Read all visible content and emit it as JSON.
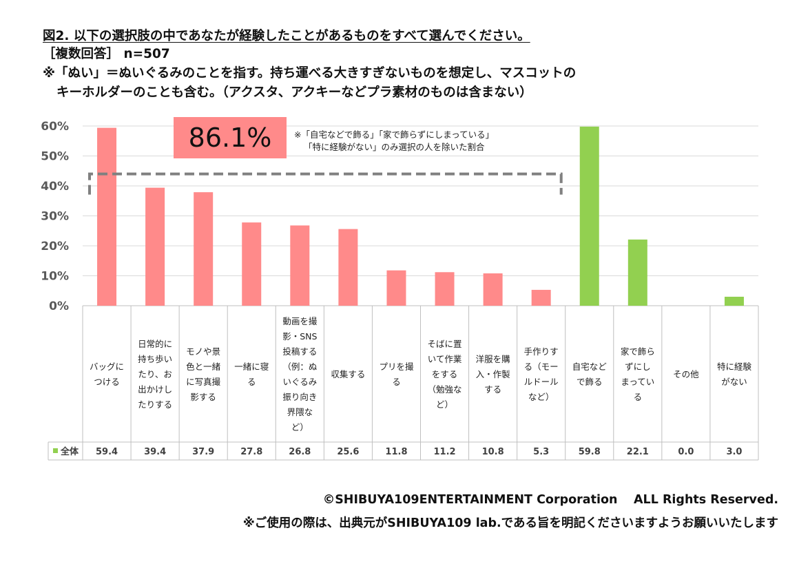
{
  "header": {
    "title": "図2. 以下の選択肢の中であなたが経験したことがあるものをすべて選んでください。",
    "sample": "［複数回答］ n=507",
    "note_line1": "※「ぬい」＝ぬいぐるみのことを指す。持ち運べる大きすぎないものを想定し、マスコットの",
    "note_line2": "キーホルダーのことも含む。（アクスタ、アクキーなどプラ素材のものは含まない）"
  },
  "chart_data": {
    "type": "bar",
    "ylim": [
      0,
      60
    ],
    "yticks": [
      "0%",
      "10%",
      "20%",
      "30%",
      "40%",
      "50%",
      "60%"
    ],
    "grid": true,
    "categories": [
      [
        "バッグに",
        "つける"
      ],
      [
        "日常的に",
        "持ち歩い",
        "たり、お",
        "出かけし",
        "たりする"
      ],
      [
        "モノや景",
        "色と一緒",
        "に写真撮",
        "影する"
      ],
      [
        "一緒に寝",
        "る"
      ],
      [
        "動画を撮",
        "影・SNS",
        "投稿する",
        "（例：ぬ",
        "いぐるみ",
        "振り向き",
        "界隈な",
        "ど）"
      ],
      [
        "収集する"
      ],
      [
        "プリを撮",
        "る"
      ],
      [
        "そばに置",
        "いて作業",
        "をする",
        "（勉強な",
        "ど）"
      ],
      [
        "洋服を購",
        "入・作製",
        "する"
      ],
      [
        "手作りす",
        "る（モー",
        "ルドール",
        "など）"
      ],
      [
        "自宅など",
        "で飾る"
      ],
      [
        "家で飾ら",
        "ずにし",
        "まってい",
        "る"
      ],
      [
        "その他"
      ],
      [
        "特に経験",
        "がない"
      ]
    ],
    "series": [
      {
        "name": "全体",
        "values": [
          59.4,
          39.4,
          37.9,
          27.8,
          26.8,
          25.6,
          11.8,
          11.2,
          10.8,
          5.3,
          59.8,
          22.1,
          0.0,
          3.0
        ],
        "labels": [
          "59.4",
          "39.4",
          "37.9",
          "27.8",
          "26.8",
          "25.6",
          "11.8",
          "11.2",
          "10.8",
          "5.3",
          "59.8",
          "22.1",
          "0.0",
          "3.0"
        ]
      }
    ],
    "bar_colors": [
      "#ff8a8a",
      "#ff8a8a",
      "#ff8a8a",
      "#ff8a8a",
      "#ff8a8a",
      "#ff8a8a",
      "#ff8a8a",
      "#ff8a8a",
      "#ff8a8a",
      "#ff8a8a",
      "#92d050",
      "#92d050",
      "#92d050",
      "#92d050"
    ],
    "legend_color": "#92d050",
    "bracket_value": 44,
    "bracket_span": [
      0,
      9
    ],
    "highlight": {
      "text": "86.1%",
      "color": "#ff8a8a",
      "note_line1": "※「自宅などで飾る」「家で飾らずにしまっている」",
      "note_line2": "「特に経験がない」のみ選択の人を除いた割合"
    }
  },
  "footer": {
    "copyright": "©SHIBUYA109ENTERTAINMENT Corporation　 ALL Rights Reserved.",
    "usage": "※ご使用の際は、出典元がSHIBUYA109 lab.である旨を明記くださいますようお願いいたします"
  }
}
